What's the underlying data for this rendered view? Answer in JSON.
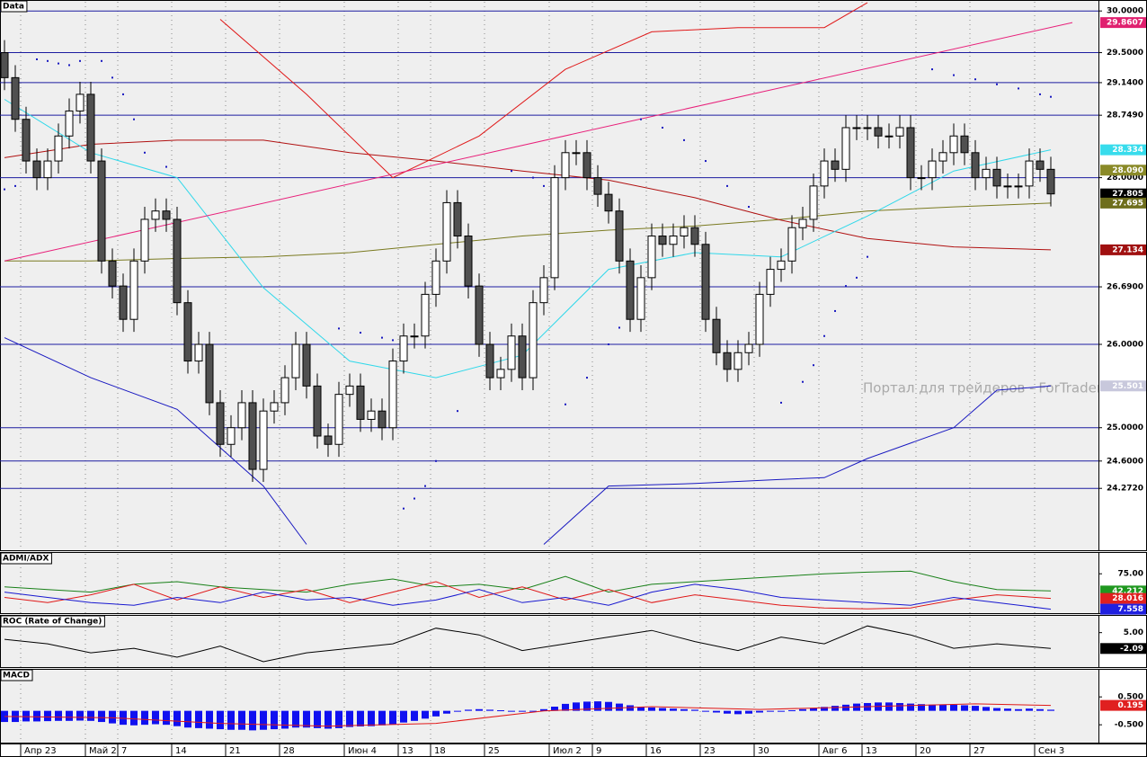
{
  "chart_data": [
    {
      "type": "candlestick",
      "title": "Data",
      "watermark": "Портал для трейдеров - ForTrader.org",
      "categories": [
        null,
        null,
        "Апр 23",
        null,
        null,
        null,
        null,
        null,
        "Май 2",
        null,
        null,
        "7",
        null,
        null,
        null,
        null,
        "14",
        null,
        null,
        null,
        null,
        "21",
        null,
        null,
        null,
        null,
        "28",
        null,
        null,
        null,
        null,
        null,
        "Июн 4",
        null,
        null,
        null,
        null,
        "13",
        null,
        null,
        "18",
        null,
        null,
        null,
        null,
        "25",
        null,
        null,
        null,
        null,
        null,
        "Июл 2",
        null,
        null,
        null,
        "9",
        null,
        null,
        null,
        null,
        "16",
        null,
        null,
        null,
        null,
        "23",
        null,
        null,
        null,
        null,
        "30",
        null,
        null,
        null,
        null,
        null,
        "Авг 6",
        null,
        null,
        null,
        "13",
        null,
        null,
        null,
        null,
        "20",
        null,
        null,
        null,
        null,
        "27",
        null,
        null,
        null,
        null,
        null,
        "Сен 3",
        null
      ],
      "open": [
        29.5,
        29.2,
        28.7,
        28.2,
        28.0,
        28.2,
        28.5,
        28.8,
        29.0,
        28.2,
        27.0,
        26.7,
        26.3,
        27.0,
        27.5,
        27.6,
        27.5,
        26.5,
        25.8,
        26.0,
        25.3,
        24.8,
        25.0,
        25.3,
        24.5,
        25.2,
        25.3,
        25.6,
        26.0,
        25.5,
        24.9,
        24.8,
        25.4,
        25.5,
        25.1,
        25.2,
        25.0,
        25.8,
        26.1,
        26.1,
        26.6,
        27.0,
        27.7,
        27.3,
        26.7,
        26.0,
        25.6,
        25.7,
        26.1,
        25.6,
        26.5,
        26.8,
        28.0,
        28.3,
        28.3,
        28.0,
        27.8,
        27.6,
        27.0,
        26.3,
        26.8,
        27.3,
        27.2,
        27.3,
        27.4,
        27.2,
        26.3,
        25.9,
        25.7,
        25.9,
        26.0,
        26.6,
        26.9,
        27.0,
        27.4,
        27.5,
        27.9,
        28.2,
        28.1,
        28.6,
        28.6,
        28.6,
        28.5,
        28.5,
        28.6,
        28.0,
        28.0,
        28.2,
        28.3,
        28.5,
        28.3,
        28.0,
        28.1,
        27.9,
        27.9,
        27.9,
        28.2,
        28.1
      ],
      "high": [
        29.65,
        29.35,
        28.85,
        28.35,
        28.35,
        28.65,
        28.95,
        29.15,
        29.15,
        28.35,
        27.15,
        26.85,
        27.15,
        27.65,
        27.75,
        27.75,
        27.65,
        26.65,
        26.15,
        26.15,
        25.45,
        25.15,
        25.45,
        25.45,
        25.35,
        25.45,
        25.75,
        26.15,
        26.15,
        25.65,
        25.05,
        25.55,
        25.65,
        25.65,
        25.35,
        25.35,
        25.95,
        26.25,
        26.25,
        26.75,
        27.15,
        27.85,
        27.85,
        27.45,
        26.85,
        26.15,
        25.85,
        26.25,
        26.25,
        26.65,
        26.95,
        28.15,
        28.45,
        28.45,
        28.45,
        28.15,
        27.95,
        27.75,
        27.15,
        26.95,
        27.45,
        27.45,
        27.45,
        27.55,
        27.55,
        27.35,
        26.45,
        26.05,
        26.05,
        26.15,
        26.75,
        27.05,
        27.15,
        27.55,
        27.65,
        28.05,
        28.35,
        28.35,
        28.75,
        28.75,
        28.75,
        28.75,
        28.65,
        28.75,
        28.75,
        28.15,
        28.35,
        28.45,
        28.65,
        28.65,
        28.45,
        28.25,
        28.25,
        28.05,
        28.05,
        28.35,
        28.35,
        28.25
      ],
      "low": [
        29.05,
        28.55,
        28.05,
        27.85,
        27.85,
        28.05,
        28.35,
        28.65,
        28.05,
        26.85,
        26.55,
        26.15,
        26.15,
        26.85,
        27.35,
        27.35,
        26.35,
        25.65,
        25.65,
        25.15,
        24.65,
        24.65,
        24.85,
        24.35,
        24.35,
        25.05,
        25.15,
        25.45,
        25.35,
        24.75,
        24.65,
        24.65,
        25.25,
        24.95,
        24.95,
        24.85,
        24.85,
        25.65,
        25.95,
        25.95,
        26.45,
        26.85,
        27.15,
        26.55,
        25.85,
        25.45,
        25.45,
        25.55,
        25.45,
        25.45,
        26.35,
        26.65,
        27.85,
        28.15,
        27.85,
        27.65,
        27.45,
        26.85,
        26.15,
        26.15,
        26.65,
        27.05,
        27.05,
        27.15,
        27.05,
        26.15,
        25.75,
        25.55,
        25.55,
        25.75,
        25.85,
        26.45,
        26.75,
        26.85,
        27.25,
        27.35,
        27.75,
        27.95,
        27.95,
        28.45,
        28.45,
        28.35,
        28.35,
        28.35,
        27.85,
        27.85,
        27.85,
        28.05,
        28.15,
        28.15,
        27.85,
        27.85,
        27.75,
        27.75,
        27.75,
        27.75,
        27.95,
        27.655
      ],
      "close": [
        29.2,
        28.7,
        28.2,
        28.0,
        28.2,
        28.5,
        28.8,
        29.0,
        28.2,
        27.0,
        26.7,
        26.3,
        27.0,
        27.5,
        27.6,
        27.5,
        26.5,
        25.8,
        26.0,
        25.3,
        24.8,
        25.0,
        25.3,
        24.5,
        25.2,
        25.3,
        25.6,
        26.0,
        25.5,
        24.9,
        24.8,
        25.4,
        25.5,
        25.1,
        25.2,
        25.0,
        25.8,
        26.1,
        26.1,
        26.6,
        27.0,
        27.7,
        27.3,
        26.7,
        26.0,
        25.6,
        25.7,
        26.1,
        25.6,
        26.5,
        26.8,
        28.0,
        28.3,
        28.3,
        28.0,
        27.8,
        27.6,
        27.0,
        26.3,
        26.8,
        27.3,
        27.2,
        27.3,
        27.4,
        27.2,
        26.3,
        25.9,
        25.7,
        25.9,
        26.0,
        26.6,
        26.9,
        27.0,
        27.4,
        27.5,
        27.9,
        28.2,
        28.1,
        28.6,
        28.6,
        28.6,
        28.5,
        28.5,
        28.6,
        28.0,
        28.0,
        28.2,
        28.3,
        28.5,
        28.3,
        28.0,
        28.1,
        27.9,
        27.9,
        27.9,
        28.2,
        28.1,
        27.805
      ],
      "ylim": [
        23.53,
        30.11
      ],
      "yticks": [
        {
          "value": 30,
          "label": "30.0000"
        },
        {
          "value": 29.5,
          "label": "29.5000"
        },
        {
          "value": 29.14,
          "label": "29.1400"
        },
        {
          "value": 28.749,
          "label": "28.7490"
        },
        {
          "value": 28,
          "label": "28.0000"
        },
        {
          "value": 26.69,
          "label": "26.6900"
        },
        {
          "value": 26,
          "label": "26.0000"
        },
        {
          "value": 25,
          "label": "25.0000"
        },
        {
          "value": 24.6,
          "label": "24.6000"
        },
        {
          "value": 24.272,
          "label": "24.2720"
        }
      ],
      "level_color": "#1c1ca0",
      "series": [
        {
          "color": "#7a7a20",
          "x": [
            0,
            8,
            16,
            24,
            32,
            40,
            48,
            56,
            64,
            72,
            80,
            88,
            97
          ],
          "values": [
            27.0,
            27.0,
            27.03,
            27.05,
            27.1,
            27.2,
            27.3,
            27.37,
            27.42,
            27.5,
            27.6,
            27.65,
            27.695
          ]
        },
        {
          "color": "#b01010",
          "x": [
            0,
            8,
            16,
            24,
            32,
            40,
            48,
            56,
            64,
            72,
            80,
            88,
            97
          ],
          "values": [
            28.24,
            28.4,
            28.45,
            28.45,
            28.3,
            28.2,
            28.08,
            27.97,
            27.76,
            27.49,
            27.27,
            27.17,
            27.134
          ]
        },
        {
          "color": "#30d8ea",
          "x": [
            0,
            8,
            16,
            24,
            32,
            40,
            48,
            56,
            64,
            72,
            80,
            88,
            97
          ],
          "values": [
            28.94,
            28.3,
            28.0,
            26.68,
            25.8,
            25.6,
            25.87,
            26.9,
            27.1,
            27.05,
            27.54,
            28.08,
            28.334
          ]
        },
        {
          "color": "#e01818",
          "x": [
            20,
            28,
            36,
            44,
            52,
            60,
            68,
            76,
            80
          ],
          "values": [
            29.9,
            29.0,
            28.0,
            28.5,
            29.3,
            29.75,
            29.8,
            29.8,
            30.1
          ]
        },
        {
          "color": "#1818c0",
          "x": [
            0,
            8,
            16,
            24,
            28,
            40,
            50,
            56,
            64,
            72,
            76,
            80,
            88,
            92,
            97
          ],
          "values": [
            26.08,
            25.6,
            25.22,
            24.3,
            23.6,
            null,
            23.6,
            24.3,
            24.33,
            24.38,
            24.4,
            24.63,
            25.0,
            25.45,
            25.501
          ]
        },
        {
          "color": "#e8207a",
          "x": [
            0,
            99
          ],
          "values": [
            27.0,
            29.8607
          ]
        }
      ],
      "sar": {
        "color": "#1818c0",
        "x": [
          0,
          1,
          3,
          4,
          5,
          6,
          7,
          9,
          10,
          11,
          12,
          13,
          15,
          31,
          33,
          35,
          36,
          37,
          38,
          39,
          40,
          42,
          47,
          49,
          50,
          52,
          54,
          56,
          57,
          59,
          61,
          63,
          65,
          67,
          69,
          72,
          74,
          75,
          76,
          77,
          78,
          79,
          80,
          86,
          88,
          90,
          92,
          94,
          96,
          97
        ],
        "values": [
          27.86,
          27.9,
          29.42,
          29.4,
          29.37,
          29.35,
          29.4,
          29.4,
          29.2,
          29.0,
          28.7,
          28.3,
          28.13,
          26.19,
          26.14,
          26.08,
          26.05,
          24.03,
          24.15,
          24.3,
          24.6,
          25.2,
          28.08,
          28.0,
          27.9,
          25.28,
          25.6,
          26.0,
          26.2,
          28.7,
          28.6,
          28.45,
          28.2,
          27.9,
          27.65,
          25.3,
          25.55,
          25.75,
          26.1,
          26.4,
          26.7,
          26.8,
          27.05,
          29.3,
          29.23,
          29.18,
          29.12,
          29.07,
          29.0,
          28.97
        ]
      },
      "value_badges": [
        {
          "value": 29.8607,
          "label": "29.8607",
          "color": "#e0206f"
        },
        {
          "value": 28.334,
          "label": "28.334",
          "color": "#38dcec"
        },
        {
          "value": 28.09,
          "label": "28.090",
          "color": "#8a8a28"
        },
        {
          "value": 27.805,
          "label": "27.805",
          "color": "#000000"
        },
        {
          "value": 27.695,
          "label": "27.695",
          "color": "#6e6e1c"
        },
        {
          "value": 27.134,
          "label": "27.134",
          "color": "#a01010"
        },
        {
          "value": 25.501,
          "label": "25.501",
          "color": "#c8c8dc"
        }
      ]
    },
    {
      "type": "line",
      "title": "ADMI/ADX",
      "x": [
        0,
        4,
        8,
        12,
        16,
        20,
        24,
        28,
        32,
        36,
        40,
        44,
        48,
        52,
        56,
        60,
        64,
        68,
        72,
        76,
        80,
        84,
        88,
        92,
        97
      ],
      "ylim": [
        0,
        113
      ],
      "yticks": [
        {
          "value": 75,
          "label": "75.00"
        }
      ],
      "series": [
        {
          "color": "#188018",
          "values": [
            50,
            45,
            40,
            55,
            60,
            50,
            45,
            40,
            55,
            65,
            50,
            55,
            45,
            70,
            40,
            55,
            60,
            65,
            70,
            75,
            78,
            80,
            60,
            45,
            42.212
          ]
        },
        {
          "color": "#e01818",
          "values": [
            30,
            20,
            35,
            55,
            25,
            50,
            30,
            45,
            20,
            40,
            60,
            30,
            50,
            25,
            45,
            20,
            35,
            25,
            15,
            10,
            8,
            10,
            25,
            35,
            28.016
          ]
        },
        {
          "color": "#1818d0",
          "values": [
            40,
            30,
            20,
            15,
            30,
            20,
            40,
            25,
            30,
            15,
            25,
            45,
            20,
            30,
            15,
            40,
            55,
            45,
            30,
            25,
            20,
            15,
            30,
            20,
            7.558
          ]
        }
      ],
      "value_badges": [
        {
          "value": 42.212,
          "label": "42.212",
          "color": "#209820"
        },
        {
          "value": 28.016,
          "label": "28.016",
          "color": "#e02020"
        },
        {
          "value": 7.558,
          "label": "7.558",
          "color": "#2020e0"
        }
      ]
    },
    {
      "type": "line",
      "title": "ROC (Rate of Change)",
      "x": [
        0,
        4,
        8,
        12,
        16,
        20,
        24,
        28,
        32,
        36,
        40,
        44,
        48,
        52,
        56,
        60,
        64,
        68,
        72,
        76,
        80,
        84,
        88,
        92,
        97
      ],
      "ylim": [
        -10.4,
        12.1
      ],
      "yticks": [
        {
          "value": 5,
          "label": "5.00"
        }
      ],
      "series": [
        {
          "color": "#000000",
          "values": [
            2,
            0,
            -4,
            -2,
            -6,
            -1,
            -8,
            -4,
            -2,
            0,
            7,
            4,
            -3,
            0,
            3,
            6,
            1,
            -3,
            3,
            0,
            8,
            4,
            -2,
            0,
            -2.09
          ]
        }
      ],
      "value_badges": [
        {
          "value": -2.09,
          "label": "-2.09",
          "color": "#000000"
        }
      ]
    },
    {
      "type": "bar",
      "title": "MACD",
      "color": "#1010f0",
      "ylim": [
        -1.14,
        1.44
      ],
      "yticks": [
        {
          "value": 0.5,
          "label": "0.500"
        },
        {
          "value": -0.5,
          "label": "-0.500"
        }
      ],
      "values": [
        -0.4,
        -0.4,
        -0.38,
        -0.38,
        -0.37,
        -0.36,
        -0.36,
        -0.35,
        -0.36,
        -0.4,
        -0.45,
        -0.5,
        -0.52,
        -0.5,
        -0.48,
        -0.5,
        -0.55,
        -0.6,
        -0.62,
        -0.64,
        -0.66,
        -0.68,
        -0.68,
        -0.7,
        -0.68,
        -0.66,
        -0.64,
        -0.6,
        -0.6,
        -0.62,
        -0.64,
        -0.62,
        -0.58,
        -0.56,
        -0.55,
        -0.52,
        -0.48,
        -0.42,
        -0.36,
        -0.28,
        -0.2,
        -0.1,
        -0.02,
        0.04,
        0.06,
        0.04,
        0.02,
        0.0,
        -0.02,
        0.0,
        0.06,
        0.15,
        0.25,
        0.3,
        0.33,
        0.34,
        0.32,
        0.26,
        0.2,
        0.14,
        0.12,
        0.1,
        0.08,
        0.06,
        0.04,
        0.0,
        -0.06,
        -0.1,
        -0.12,
        -0.1,
        -0.06,
        -0.02,
        0.0,
        0.02,
        0.06,
        0.1,
        0.14,
        0.18,
        0.22,
        0.26,
        0.28,
        0.3,
        0.3,
        0.28,
        0.26,
        0.24,
        0.22,
        0.22,
        0.22,
        0.2,
        0.18,
        0.14,
        0.1,
        0.08,
        0.06,
        0.08,
        0.06,
        0.04
      ],
      "series": [
        {
          "color": "#e01818",
          "x": [
            0,
            10,
            20,
            30,
            40,
            50,
            60,
            70,
            80,
            90,
            97
          ],
          "values": [
            -0.2,
            -0.25,
            -0.45,
            -0.55,
            -0.45,
            0.0,
            0.15,
            0.05,
            0.15,
            0.25,
            0.195
          ]
        }
      ],
      "value_badges": [
        {
          "value": 0.195,
          "label": "0.195",
          "color": "#e02020"
        }
      ]
    }
  ]
}
